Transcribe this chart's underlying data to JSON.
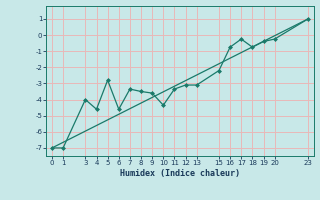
{
  "xlabel": "Humidex (Indice chaleur)",
  "background_color": "#c8e8e8",
  "grid_color": "#e8b8b8",
  "line_color": "#1a7a6a",
  "xlim": [
    -0.5,
    23.5
  ],
  "ylim": [
    -7.5,
    1.8
  ],
  "yticks": [
    1,
    0,
    -1,
    -2,
    -3,
    -4,
    -5,
    -6,
    -7
  ],
  "xticks": [
    0,
    1,
    3,
    4,
    5,
    6,
    7,
    8,
    9,
    10,
    11,
    12,
    13,
    15,
    16,
    17,
    18,
    19,
    20,
    23
  ],
  "data_x": [
    0,
    1,
    3,
    4,
    5,
    6,
    7,
    8,
    9,
    10,
    11,
    12,
    13,
    15,
    16,
    17,
    18,
    19,
    20,
    23
  ],
  "data_y": [
    -7,
    -7,
    -4.0,
    -4.6,
    -2.8,
    -4.6,
    -3.35,
    -3.5,
    -3.6,
    -4.35,
    -3.35,
    -3.1,
    -3.1,
    -2.2,
    -0.75,
    -0.25,
    -0.75,
    -0.4,
    -0.25,
    1.0
  ],
  "line_x": [
    0,
    23
  ],
  "line_y": [
    -7.0,
    1.0
  ]
}
